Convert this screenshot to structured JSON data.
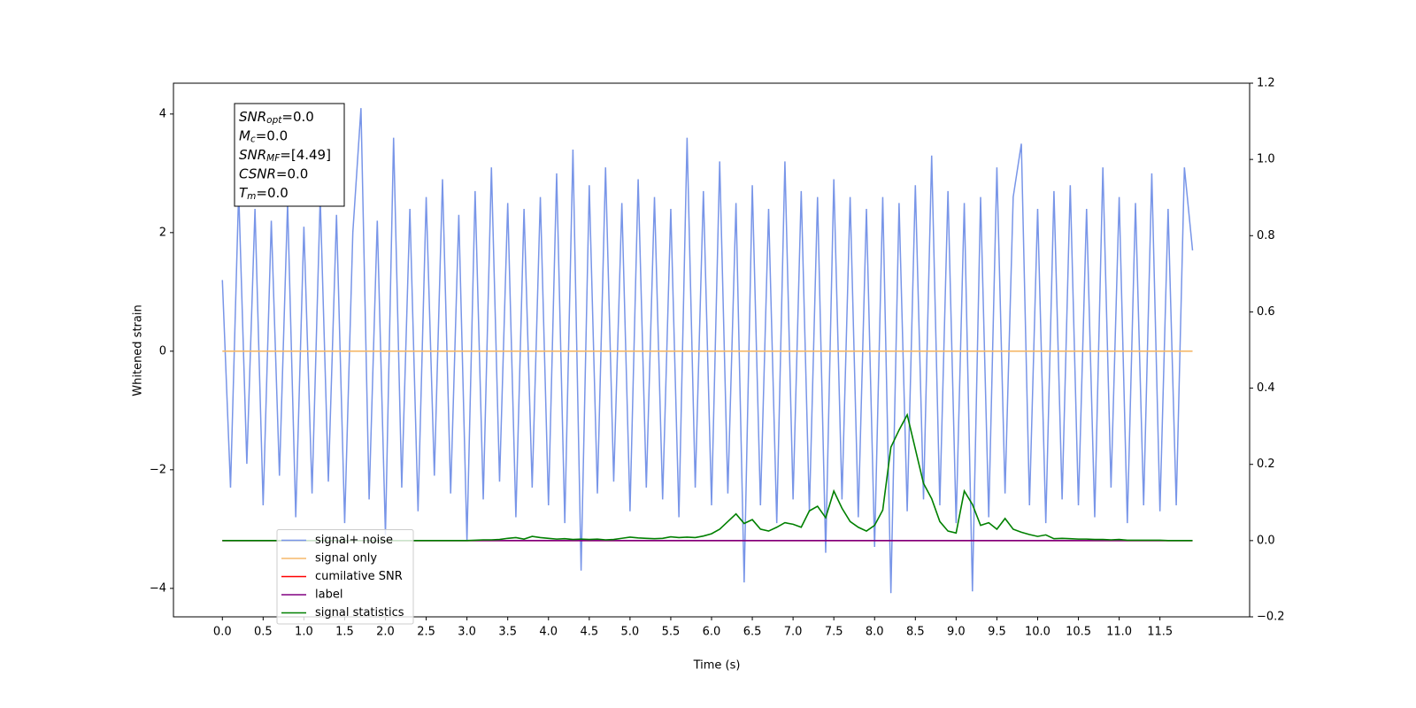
{
  "chart_data": {
    "type": "line",
    "xlabel": "Time (s)",
    "ylabel": "Whitened strain",
    "annotations": [
      {
        "main": "SNR",
        "sub": "opt",
        "rest": "=0.0"
      },
      {
        "main": "M",
        "sub": "c",
        "rest": "=0.0"
      },
      {
        "main": "SNR",
        "sub": "MF",
        "rest": "=[4.49]"
      },
      {
        "main": "CSNR",
        "sub": "",
        "rest": "=0.0"
      },
      {
        "main": "T",
        "sub": "m",
        "rest": "=0.0"
      }
    ],
    "legend": "lower left",
    "xlim": [
      -0.6,
      12.6
    ],
    "ylim": [
      -4.48,
      4.52
    ],
    "y2lim": [
      -0.2,
      1.2
    ],
    "xticks": [
      {
        "value": 0,
        "label": "0.0"
      },
      0.5,
      {
        "value": 1,
        "label": "1.0"
      },
      1.5,
      {
        "value": 2,
        "label": "2.0"
      },
      2.5,
      {
        "value": 3,
        "label": "3.0"
      },
      3.5,
      {
        "value": 4,
        "label": "4.0"
      },
      4.5,
      {
        "value": 5,
        "label": "5.0"
      },
      5.5,
      {
        "value": 6,
        "label": "6.0"
      },
      6.5,
      {
        "value": 7,
        "label": "7.0"
      },
      7.5,
      {
        "value": 8,
        "label": "8.0"
      },
      8.5,
      {
        "value": 9,
        "label": "9.0"
      },
      9.5,
      {
        "value": 10,
        "label": "10.0"
      },
      10.5,
      {
        "value": 11,
        "label": "11.0"
      },
      11.5
    ],
    "yticks": [
      {
        "value": -4,
        "label": "−4"
      },
      {
        "value": -2,
        "label": "−2"
      },
      0,
      2,
      4
    ],
    "y2ticks": [
      {
        "value": -0.2,
        "label": "−0.2"
      },
      {
        "value": 0,
        "label": "0.0"
      },
      0.2,
      0.4,
      0.6,
      0.8,
      {
        "value": 1,
        "label": "1.0"
      },
      1.2
    ],
    "x": [
      0.0,
      0.1,
      0.2,
      0.3,
      0.4,
      0.5,
      0.6,
      0.7,
      0.8,
      0.9,
      1.0,
      1.1,
      1.2,
      1.3,
      1.4,
      1.5,
      1.6,
      1.7,
      1.8,
      1.9,
      2.0,
      2.1,
      2.2,
      2.3,
      2.4,
      2.5,
      2.6,
      2.7,
      2.8,
      2.9,
      3.0,
      3.1,
      3.2,
      3.3,
      3.4,
      3.5,
      3.6,
      3.7,
      3.8,
      3.9,
      4.0,
      4.1,
      4.2,
      4.3,
      4.4,
      4.5,
      4.6,
      4.7,
      4.8,
      4.9,
      5.0,
      5.1,
      5.2,
      5.3,
      5.4,
      5.5,
      5.6,
      5.7,
      5.8,
      5.9,
      6.0,
      6.1,
      6.2,
      6.3,
      6.4,
      6.5,
      6.6,
      6.7,
      6.8,
      6.9,
      7.0,
      7.1,
      7.2,
      7.3,
      7.4,
      7.5,
      7.6,
      7.7,
      7.8,
      7.9,
      8.0,
      8.1,
      8.2,
      8.3,
      8.4,
      8.5,
      8.6,
      8.7,
      8.8,
      8.9,
      9.0,
      9.1,
      9.2,
      9.3,
      9.4,
      9.5,
      9.6,
      9.7,
      9.8,
      9.9,
      10.0,
      10.1,
      10.2,
      10.3,
      10.4,
      10.5,
      10.6,
      10.7,
      10.8,
      10.9,
      11.0,
      11.1,
      11.2,
      11.3,
      11.4,
      11.5,
      11.6,
      11.7,
      11.8,
      11.9
    ],
    "series": [
      {
        "name": "signal+ noise",
        "color": "#7895e8",
        "values": [
          1.2,
          -2.3,
          2.7,
          -1.9,
          2.4,
          -2.6,
          2.2,
          -2.1,
          2.5,
          -2.8,
          2.1,
          -2.4,
          2.6,
          -2.2,
          2.3,
          -2.9,
          2.0,
          4.1,
          -2.5,
          2.2,
          -3.1,
          3.6,
          -2.3,
          2.4,
          -2.7,
          2.6,
          -2.1,
          2.9,
          -2.4,
          2.3,
          -3.2,
          2.7,
          -2.5,
          3.1,
          -2.2,
          2.5,
          -2.8,
          2.4,
          -2.3,
          2.6,
          -2.6,
          3.0,
          -2.9,
          3.4,
          -3.7,
          2.8,
          -2.4,
          3.1,
          -2.2,
          2.5,
          -2.7,
          2.9,
          -2.3,
          2.6,
          -2.5,
          2.4,
          -2.8,
          3.6,
          -2.3,
          2.7,
          -2.6,
          3.2,
          -2.4,
          2.5,
          -3.9,
          2.8,
          -2.6,
          2.4,
          -2.9,
          3.2,
          -2.5,
          2.7,
          -2.7,
          2.6,
          -3.4,
          2.9,
          -2.5,
          2.6,
          -2.8,
          2.4,
          -3.3,
          2.6,
          -4.08,
          2.5,
          -2.7,
          2.8,
          -2.5,
          3.3,
          -2.6,
          2.7,
          -2.9,
          2.5,
          -4.05,
          2.6,
          -2.8,
          3.1,
          -2.4,
          2.6,
          3.5,
          -2.6,
          2.4,
          -2.9,
          2.7,
          -2.5,
          2.8,
          -2.6,
          2.4,
          -2.8,
          3.1,
          -2.3,
          2.6,
          -2.9,
          2.5,
          -2.6,
          3.0,
          -2.7,
          2.4,
          -2.6,
          3.1,
          1.7
        ]
      },
      {
        "name": "signal only",
        "color": "#f5b96a",
        "values": [
          0,
          0,
          0,
          0,
          0,
          0,
          0,
          0,
          0,
          0,
          0,
          0,
          0,
          0,
          0,
          0,
          0,
          0,
          0,
          0,
          0,
          0,
          0,
          0,
          0,
          0,
          0,
          0,
          0,
          0,
          0,
          0,
          0,
          0,
          0,
          0,
          0,
          0,
          0,
          0,
          0,
          0,
          0,
          0,
          0,
          0,
          0,
          0,
          0,
          0,
          0,
          0,
          0,
          0,
          0,
          0,
          0,
          0,
          0,
          0,
          0,
          0,
          0,
          0,
          0,
          0,
          0,
          0,
          0,
          0,
          0,
          0,
          0,
          0,
          0,
          0,
          0,
          0,
          0,
          0,
          0,
          0,
          0,
          0,
          0,
          0,
          0,
          0,
          0,
          0,
          0,
          0,
          0,
          0,
          0,
          0,
          0,
          0,
          0,
          0,
          0,
          0,
          0,
          0,
          0,
          0,
          0,
          0,
          0,
          0,
          0,
          0,
          0,
          0,
          0,
          0,
          0,
          0,
          0,
          0
        ]
      },
      {
        "name": "cumilative SNR",
        "color": "#ff0000",
        "axis": "y2",
        "values": [
          0,
          0,
          0,
          0,
          0,
          0,
          0,
          0,
          0,
          0,
          0,
          0,
          0,
          0,
          0,
          0,
          0,
          0,
          0,
          0,
          0,
          0,
          0,
          0,
          0,
          0,
          0,
          0,
          0,
          0,
          0,
          0,
          0,
          0,
          0,
          0,
          0,
          0,
          0,
          0,
          0,
          0,
          0,
          0,
          0,
          0,
          0,
          0,
          0,
          0,
          0,
          0,
          0,
          0,
          0,
          0,
          0,
          0,
          0,
          0,
          0,
          0,
          0,
          0,
          0,
          0,
          0,
          0,
          0,
          0,
          0,
          0,
          0,
          0,
          0,
          0,
          0,
          0,
          0,
          0,
          0,
          0,
          0,
          0,
          0,
          0,
          0,
          0,
          0,
          0,
          0,
          0,
          0,
          0,
          0,
          0,
          0,
          0,
          0,
          0,
          0,
          0,
          0,
          0,
          0,
          0,
          0,
          0,
          0,
          0,
          0,
          0,
          0,
          0,
          0,
          0,
          0,
          0,
          0,
          0
        ]
      },
      {
        "name": "label",
        "color": "#800080",
        "axis": "y2",
        "values": [
          0,
          0,
          0,
          0,
          0,
          0,
          0,
          0,
          0,
          0,
          0,
          0,
          0,
          0,
          0,
          0,
          0,
          0,
          0,
          0,
          0,
          0,
          0,
          0,
          0,
          0,
          0,
          0,
          0,
          0,
          0,
          0,
          0,
          0,
          0,
          0,
          0,
          0,
          0,
          0,
          0,
          0,
          0,
          0,
          0,
          0,
          0,
          0,
          0,
          0,
          0,
          0,
          0,
          0,
          0,
          0,
          0,
          0,
          0,
          0,
          0,
          0,
          0,
          0,
          0,
          0,
          0,
          0,
          0,
          0,
          0,
          0,
          0,
          0,
          0,
          0,
          0,
          0,
          0,
          0,
          0,
          0,
          0,
          0,
          0,
          0,
          0,
          0,
          0,
          0,
          0,
          0,
          0,
          0,
          0,
          0,
          0,
          0,
          0,
          0,
          0,
          0,
          0,
          0,
          0,
          0,
          0,
          0,
          0,
          0,
          0,
          0,
          0,
          0,
          0,
          0,
          0,
          0,
          0,
          0
        ]
      },
      {
        "name": "signal statistics",
        "color": "#008000",
        "axis": "y2",
        "values": [
          0,
          0,
          0,
          0,
          0,
          0,
          0,
          0,
          0,
          0,
          0,
          0,
          0,
          0,
          0,
          0,
          0,
          0,
          0,
          0,
          0,
          0,
          0,
          0,
          0,
          0,
          0,
          0,
          0,
          0,
          0,
          0.001,
          0.002,
          0.002,
          0.003,
          0.006,
          0.008,
          0.004,
          0.011,
          0.008,
          0.006,
          0.004,
          0.005,
          0.003,
          0.004,
          0.003,
          0.004,
          0.002,
          0.003,
          0.006,
          0.009,
          0.007,
          0.006,
          0.005,
          0.006,
          0.01,
          0.008,
          0.009,
          0.008,
          0.012,
          0.018,
          0.03,
          0.05,
          0.07,
          0.045,
          0.055,
          0.03,
          0.025,
          0.035,
          0.047,
          0.043,
          0.035,
          0.078,
          0.09,
          0.06,
          0.13,
          0.085,
          0.05,
          0.035,
          0.025,
          0.04,
          0.08,
          0.245,
          0.29,
          0.33,
          0.24,
          0.15,
          0.11,
          0.05,
          0.025,
          0.02,
          0.13,
          0.095,
          0.04,
          0.047,
          0.03,
          0.058,
          0.03,
          0.022,
          0.016,
          0.011,
          0.015,
          0.005,
          0.006,
          0.005,
          0.004,
          0.004,
          0.003,
          0.003,
          0.002,
          0.003,
          0.001,
          0.001,
          0.001,
          0.001,
          0.001,
          0,
          0,
          0,
          0
        ]
      }
    ]
  }
}
